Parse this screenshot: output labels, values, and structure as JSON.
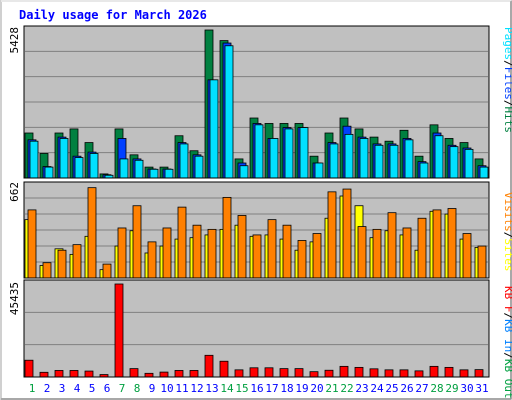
{
  "chart_data": [
    {
      "type": "bar",
      "title": "Daily usage for March 2026",
      "panel": "hits-files-pages",
      "ymax_label": "5428",
      "ylim": [
        0,
        5428
      ],
      "categories": [
        "1",
        "2",
        "3",
        "4",
        "5",
        "6",
        "7",
        "8",
        "9",
        "10",
        "11",
        "12",
        "13",
        "14",
        "15",
        "16",
        "17",
        "18",
        "19",
        "20",
        "21",
        "22",
        "23",
        "24",
        "25",
        "26",
        "27",
        "28",
        "29",
        "30",
        "31"
      ],
      "weekend_days": [
        "1",
        "7",
        "8",
        "14",
        "15",
        "21",
        "22",
        "28",
        "29"
      ],
      "series": [
        {
          "name": "Hits",
          "color": "#008040",
          "values": [
            1650,
            900,
            1650,
            1800,
            1300,
            150,
            1800,
            850,
            400,
            400,
            1550,
            1000,
            5428,
            5040,
            700,
            2200,
            2000,
            2000,
            2000,
            800,
            1650,
            2200,
            1800,
            1500,
            1350,
            1750,
            800,
            1950,
            1450,
            1300,
            700
          ]
        },
        {
          "name": "Files",
          "color": "#0040ff",
          "values": [
            1400,
            420,
            1500,
            800,
            950,
            120,
            1450,
            700,
            330,
            330,
            1300,
            850,
            3600,
            4950,
            550,
            2000,
            1450,
            1850,
            1850,
            550,
            1300,
            1900,
            1500,
            1250,
            1250,
            1450,
            600,
            1650,
            1200,
            1100,
            450
          ]
        },
        {
          "name": "Pages",
          "color": "#00e0ff",
          "values": [
            1350,
            400,
            1450,
            750,
            900,
            100,
            700,
            650,
            320,
            320,
            1250,
            800,
            3600,
            4850,
            450,
            1950,
            1450,
            1800,
            1850,
            550,
            1250,
            1600,
            1450,
            1200,
            1200,
            1400,
            550,
            1550,
            1150,
            1050,
            400
          ]
        }
      ],
      "legend": "right"
    },
    {
      "type": "bar",
      "panel": "visits-sites",
      "ymax_label": "662",
      "ylim": [
        0,
        662
      ],
      "categories": [
        "1",
        "2",
        "3",
        "4",
        "5",
        "6",
        "7",
        "8",
        "9",
        "10",
        "11",
        "12",
        "13",
        "14",
        "15",
        "16",
        "17",
        "18",
        "19",
        "20",
        "21",
        "22",
        "23",
        "24",
        "25",
        "26",
        "27",
        "28",
        "29",
        "30",
        "31"
      ],
      "series": [
        {
          "name": "Visits",
          "color": "#ffff00",
          "values": [
            420,
            90,
            210,
            170,
            300,
            60,
            230,
            340,
            180,
            230,
            280,
            290,
            310,
            350,
            380,
            300,
            310,
            280,
            200,
            260,
            430,
            590,
            520,
            290,
            340,
            310,
            200,
            480,
            460,
            280,
            220
          ]
        },
        {
          "name": "Sites",
          "color": "#ff8000",
          "values": [
            490,
            110,
            200,
            240,
            650,
            100,
            360,
            520,
            260,
            360,
            510,
            380,
            350,
            580,
            450,
            310,
            420,
            380,
            270,
            320,
            620,
            640,
            370,
            350,
            470,
            360,
            430,
            490,
            500,
            320,
            230
          ]
        }
      ],
      "legend": "right"
    },
    {
      "type": "bar",
      "panel": "kbytes",
      "ymax_label": "45435",
      "ylim": [
        0,
        45435
      ],
      "categories": [
        "1",
        "2",
        "3",
        "4",
        "5",
        "6",
        "7",
        "8",
        "9",
        "10",
        "11",
        "12",
        "13",
        "14",
        "15",
        "16",
        "17",
        "18",
        "19",
        "20",
        "21",
        "22",
        "23",
        "24",
        "25",
        "26",
        "27",
        "28",
        "29",
        "30",
        "31"
      ],
      "series": [
        {
          "name": "KB F",
          "color": "#ff0000",
          "values": [
            8200,
            2300,
            3200,
            3200,
            2900,
            1200,
            45435,
            4100,
            1800,
            2400,
            3200,
            3200,
            10600,
            7700,
            3500,
            4500,
            4500,
            4100,
            4100,
            2600,
            3300,
            5200,
            4700,
            4000,
            3500,
            3500,
            3000,
            5200,
            4700,
            3500,
            3600
          ]
        }
      ],
      "legend": "right"
    }
  ],
  "legend_groups": {
    "panel1": [
      "Pages",
      "/",
      "Files",
      "/",
      "Hits"
    ],
    "panel2": [
      "Visits",
      "/",
      "Sites"
    ],
    "panel3": [
      "KB F",
      "/",
      "KB In",
      "/",
      "KB Out"
    ]
  },
  "colors": {
    "background": "#ffffff",
    "plot": "#c0c0c0",
    "title": "#0000ff",
    "weekday_label": "#0000ff",
    "weekend_label": "#00a040",
    "kb_in": "#0080ff",
    "kb_out": "#00a040"
  }
}
